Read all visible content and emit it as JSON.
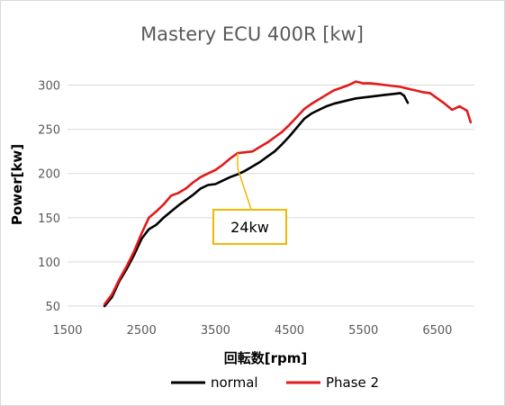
{
  "chart_data": {
    "type": "line",
    "title": "Mastery ECU 400R [kw]",
    "xlabel": "回転数[rpm]",
    "ylabel": "Power[kw]",
    "xlim": [
      1500,
      7000
    ],
    "ylim": [
      50,
      325
    ],
    "xticks": [
      1500,
      2500,
      3500,
      4500,
      5500,
      6500
    ],
    "yticks": [
      50,
      100,
      150,
      200,
      250,
      300
    ],
    "grid": "horizontal",
    "legend": "bottom",
    "annotation": {
      "text": "24kw",
      "x": 3800,
      "y": 223,
      "color": "#F2B800"
    },
    "colors": {
      "normal": "#000000",
      "phase2": "#E31A1C",
      "grid": "#D9D9D9",
      "annotation": "#F2B800"
    },
    "series": [
      {
        "name": "normal",
        "color": "#000000",
        "x": [
          2000,
          2100,
          2200,
          2300,
          2400,
          2500,
          2600,
          2700,
          2800,
          2900,
          3000,
          3100,
          3200,
          3300,
          3400,
          3500,
          3600,
          3700,
          3800,
          3900,
          4000,
          4100,
          4200,
          4300,
          4400,
          4500,
          4600,
          4700,
          4800,
          4900,
          5000,
          5100,
          5200,
          5300,
          5400,
          5500,
          5600,
          5700,
          5800,
          5900,
          6000,
          6050,
          6100
        ],
        "values": [
          50,
          60,
          78,
          92,
          108,
          126,
          137,
          142,
          150,
          157,
          164,
          170,
          176,
          183,
          187,
          188,
          192,
          196,
          199,
          203,
          208,
          213,
          219,
          225,
          233,
          242,
          252,
          262,
          268,
          272,
          276,
          279,
          281,
          283,
          285,
          286,
          287,
          288,
          289,
          290,
          291,
          288,
          280
        ]
      },
      {
        "name": "Phase 2",
        "color": "#E31A1C",
        "x": [
          2000,
          2100,
          2200,
          2300,
          2400,
          2500,
          2600,
          2700,
          2800,
          2900,
          3000,
          3100,
          3200,
          3300,
          3400,
          3500,
          3600,
          3700,
          3800,
          3900,
          4000,
          4100,
          4200,
          4300,
          4400,
          4500,
          4600,
          4700,
          4800,
          4900,
          5000,
          5100,
          5200,
          5300,
          5400,
          5500,
          5600,
          5700,
          5800,
          5900,
          6000,
          6100,
          6200,
          6300,
          6400,
          6500,
          6600,
          6700,
          6800,
          6900,
          6950
        ],
        "values": [
          52,
          63,
          80,
          95,
          112,
          132,
          150,
          157,
          165,
          175,
          178,
          183,
          190,
          196,
          200,
          204,
          210,
          217,
          223,
          224,
          225,
          230,
          235,
          241,
          247,
          255,
          264,
          273,
          279,
          284,
          289,
          294,
          297,
          300,
          304,
          302,
          302,
          301,
          300,
          299,
          298,
          296,
          294,
          292,
          291,
          285,
          279,
          272,
          276,
          271,
          258
        ]
      }
    ]
  }
}
